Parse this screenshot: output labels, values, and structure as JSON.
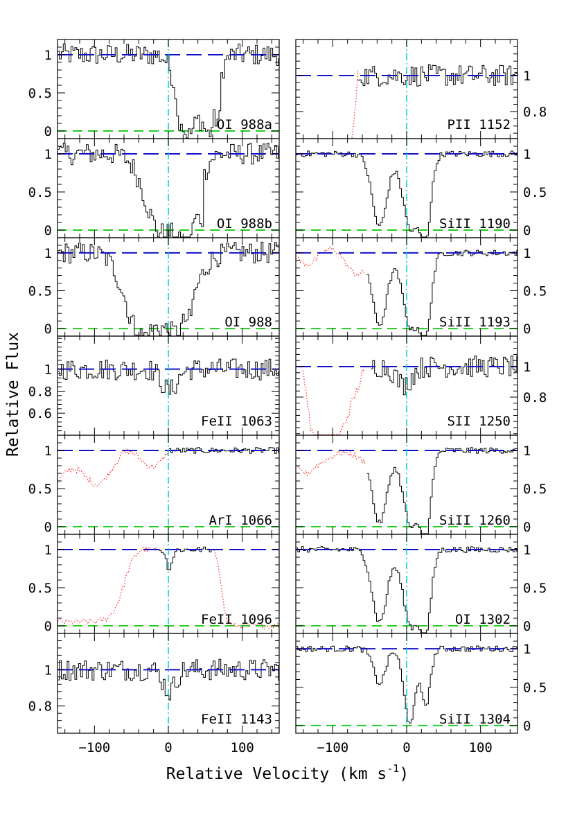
{
  "figure": {
    "xlabel": "Relative Velocity (km s",
    "xlabel_sup": "-1",
    "xlabel_close": ")",
    "ylabel": "Relative Flux"
  },
  "chart_data": [
    {
      "type": "line",
      "label": "OI 988a",
      "column": "left",
      "row": 0,
      "xlim": [
        -150,
        150
      ],
      "ylim": [
        -0.1,
        1.2
      ],
      "yticks": [
        0,
        0.5,
        1
      ],
      "ytick_labels": [
        "0",
        "0.5",
        "1"
      ],
      "continuum": 1,
      "zero_line": 0,
      "profile": "oi988a"
    },
    {
      "type": "line",
      "label": "OI 988b",
      "column": "left",
      "row": 1,
      "xlim": [
        -150,
        150
      ],
      "ylim": [
        -0.1,
        1.2
      ],
      "yticks": [
        0,
        0.5,
        1
      ],
      "ytick_labels": [
        "0",
        "0.5",
        "1"
      ],
      "continuum": 1,
      "zero_line": 0,
      "profile": "oi988b"
    },
    {
      "type": "line",
      "label": "OI 988",
      "column": "left",
      "row": 2,
      "xlim": [
        -150,
        150
      ],
      "ylim": [
        -0.1,
        1.2
      ],
      "yticks": [
        0,
        0.5,
        1
      ],
      "ytick_labels": [
        "0",
        "0.5",
        "1"
      ],
      "continuum": 1,
      "zero_line": 0,
      "profile": "oi988"
    },
    {
      "type": "line",
      "label": "FeII 1063",
      "column": "left",
      "row": 3,
      "xlim": [
        -150,
        150
      ],
      "ylim": [
        0.4,
        1.3
      ],
      "yticks": [
        0.6,
        0.8,
        1
      ],
      "ytick_labels": [
        "0.6",
        "0.8",
        "1"
      ],
      "continuum": 1,
      "zero_line": null,
      "profile": "noise"
    },
    {
      "type": "line",
      "label": "ArI 1066",
      "column": "left",
      "row": 4,
      "xlim": [
        -150,
        150
      ],
      "ylim": [
        -0.1,
        1.2
      ],
      "yticks": [
        0,
        0.5,
        1
      ],
      "ytick_labels": [
        "0",
        "0.5",
        "1"
      ],
      "continuum": 1,
      "zero_line": 0,
      "profile": "ari",
      "blend": "ari"
    },
    {
      "type": "line",
      "label": "FeII 1096",
      "column": "left",
      "row": 5,
      "xlim": [
        -150,
        150
      ],
      "ylim": [
        -0.1,
        1.2
      ],
      "yticks": [
        0,
        0.5,
        1
      ],
      "ytick_labels": [
        "0",
        "0.5",
        "1"
      ],
      "continuum": 1,
      "zero_line": 0,
      "profile": "fe1096",
      "blend": "fe1096"
    },
    {
      "type": "line",
      "label": "FeII 1143",
      "column": "left",
      "row": 6,
      "xlim": [
        -150,
        150
      ],
      "ylim": [
        0.65,
        1.2
      ],
      "yticks": [
        0.8,
        1
      ],
      "ytick_labels": [
        "0.8",
        "1"
      ],
      "continuum": 1,
      "zero_line": null,
      "profile": "noise2"
    },
    {
      "type": "line",
      "label": "PII 1152",
      "column": "right",
      "row": 0,
      "xlim": [
        -150,
        150
      ],
      "ylim": [
        0.65,
        1.2
      ],
      "yticks": [
        0.8,
        1
      ],
      "ytick_labels": [
        "0.8",
        "1"
      ],
      "continuum": 1,
      "zero_line": null,
      "profile": "pii",
      "blend": "pii"
    },
    {
      "type": "line",
      "label": "SiII 1190",
      "column": "right",
      "row": 1,
      "xlim": [
        -150,
        150
      ],
      "ylim": [
        -0.1,
        1.2
      ],
      "yticks": [
        0,
        0.5,
        1
      ],
      "ytick_labels": [
        "0",
        "0.5",
        "1"
      ],
      "continuum": 1,
      "zero_line": 0,
      "profile": "si1190"
    },
    {
      "type": "line",
      "label": "SiII 1193",
      "column": "right",
      "row": 2,
      "xlim": [
        -150,
        150
      ],
      "ylim": [
        -0.1,
        1.2
      ],
      "yticks": [
        0,
        0.5,
        1
      ],
      "ytick_labels": [
        "0",
        "0.5",
        "1"
      ],
      "continuum": 1,
      "zero_line": 0,
      "profile": "si1193",
      "blend": "si1193"
    },
    {
      "type": "line",
      "label": "SII 1250",
      "column": "right",
      "row": 3,
      "xlim": [
        -150,
        150
      ],
      "ylim": [
        0.55,
        1.2
      ],
      "yticks": [
        0.8,
        1
      ],
      "ytick_labels": [
        "0.8",
        "1"
      ],
      "continuum": 1,
      "zero_line": null,
      "profile": "sii",
      "blend": "sii"
    },
    {
      "type": "line",
      "label": "SiII 1260",
      "column": "right",
      "row": 4,
      "xlim": [
        -150,
        150
      ],
      "ylim": [
        -0.1,
        1.2
      ],
      "yticks": [
        0,
        0.5,
        1
      ],
      "ytick_labels": [
        "0",
        "0.5",
        "1"
      ],
      "continuum": 1,
      "zero_line": 0,
      "profile": "si1260",
      "blend": "si1260"
    },
    {
      "type": "line",
      "label": "OI 1302",
      "column": "right",
      "row": 5,
      "xlim": [
        -150,
        150
      ],
      "ylim": [
        -0.1,
        1.2
      ],
      "yticks": [
        0,
        0.5,
        1
      ],
      "ytick_labels": [
        "0",
        "0.5",
        "1"
      ],
      "continuum": 1,
      "zero_line": 0,
      "profile": "oi1302"
    },
    {
      "type": "line",
      "label": "SiII 1304",
      "column": "right",
      "row": 6,
      "xlim": [
        -150,
        150
      ],
      "ylim": [
        -0.1,
        1.2
      ],
      "yticks": [
        0,
        0.5,
        1
      ],
      "ytick_labels": [
        "0",
        "0.5",
        "1"
      ],
      "continuum": 1,
      "zero_line": 0,
      "profile": "si1304"
    }
  ],
  "x_ticks": [
    -100,
    0,
    100
  ],
  "x_tick_labels": [
    "−100",
    "0",
    "100"
  ],
  "colors": {
    "spectrum": "#000000",
    "continuum": "#1010c8",
    "zero": "#22cc22",
    "velocity_zero": "#00cccc",
    "blend": "#ff3030"
  }
}
